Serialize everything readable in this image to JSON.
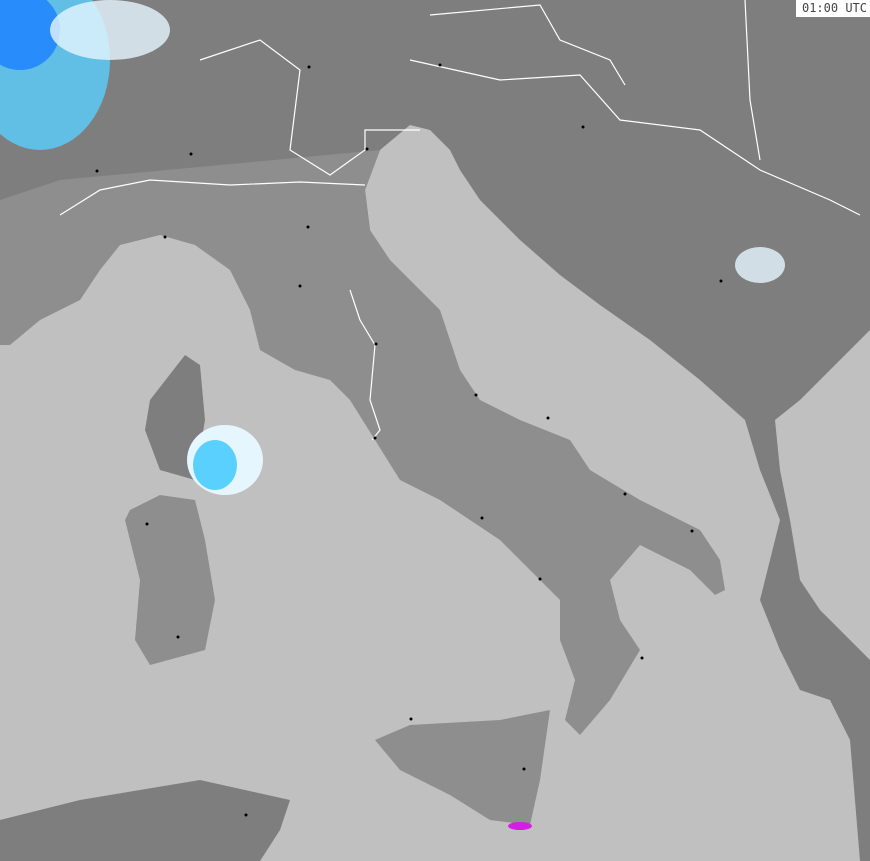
{
  "timestamp": "01:00 UTC",
  "colors": {
    "sea": "#c0c0c0",
    "land": "#8e8e8e",
    "land_neighbor": "#7e7e7e",
    "border": "#ffffff",
    "precip_light": "#e6f6ff",
    "precip_medium": "#5ad0ff",
    "precip_heavy": "#1a7fff",
    "precip_intense": "#d020e0",
    "city": "#000000"
  }
}
